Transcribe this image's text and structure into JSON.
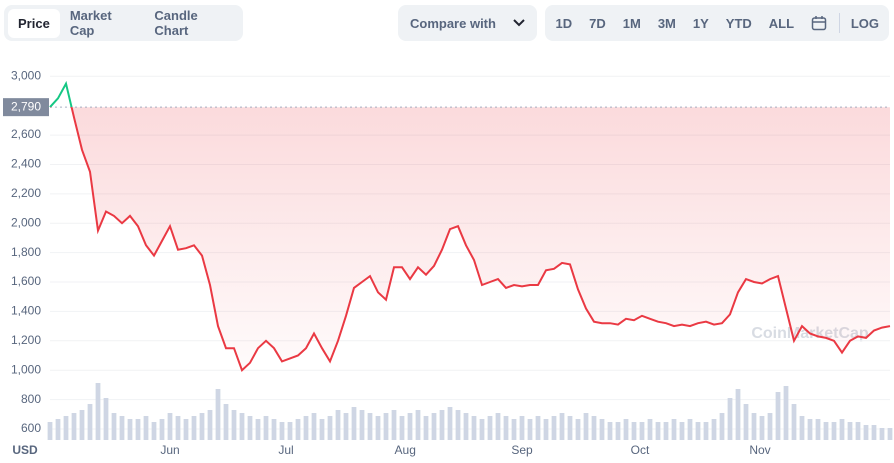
{
  "toolbar": {
    "tabs": [
      "Price",
      "Market Cap",
      "Candle Chart"
    ],
    "compare": "Compare with",
    "ranges": [
      "1D",
      "7D",
      "1M",
      "3M",
      "1Y",
      "YTD",
      "ALL"
    ],
    "log": "LOG"
  },
  "chart_data": {
    "type": "line",
    "currency": "USD",
    "watermark": "CoinMarketCap",
    "reference": {
      "value": 2790,
      "label": "2,790"
    },
    "up_color": "#16c784",
    "down_color": "#ea3943",
    "volume_color": "#cfd6e4",
    "grid": true,
    "xlim": [
      0,
      105
    ],
    "xticks": [
      {
        "value": 15,
        "label": "Jun"
      },
      {
        "value": 29.5,
        "label": "Jul"
      },
      {
        "value": 44.4,
        "label": "Aug"
      },
      {
        "value": 59,
        "label": "Sep"
      },
      {
        "value": 73.75,
        "label": "Oct"
      },
      {
        "value": 88.75,
        "label": "Nov"
      }
    ],
    "ylim": [
      525,
      3070
    ],
    "yticks": [
      {
        "value": 600,
        "label": "600"
      },
      {
        "value": 800,
        "label": "800"
      },
      {
        "value": 1000,
        "label": "1,000"
      },
      {
        "value": 1200,
        "label": "1,200"
      },
      {
        "value": 1400,
        "label": "1,400"
      },
      {
        "value": 1600,
        "label": "1,600"
      },
      {
        "value": 1800,
        "label": "1,800"
      },
      {
        "value": 2000,
        "label": "2,000"
      },
      {
        "value": 2200,
        "label": "2,200"
      },
      {
        "value": 2400,
        "label": "2,400"
      },
      {
        "value": 2600,
        "label": "2,600"
      },
      {
        "value": 3000,
        "label": "3,000"
      }
    ],
    "values": [
      2790,
      2850,
      2950,
      2720,
      2500,
      2350,
      1950,
      2080,
      2050,
      2000,
      2050,
      1980,
      1850,
      1780,
      1880,
      1980,
      1820,
      1830,
      1850,
      1780,
      1580,
      1300,
      1150,
      1150,
      1000,
      1050,
      1150,
      1200,
      1150,
      1060,
      1080,
      1100,
      1150,
      1250,
      1150,
      1060,
      1200,
      1370,
      1560,
      1600,
      1640,
      1530,
      1480,
      1700,
      1700,
      1620,
      1700,
      1650,
      1710,
      1820,
      1960,
      1980,
      1850,
      1750,
      1580,
      1600,
      1620,
      1560,
      1580,
      1570,
      1580,
      1580,
      1680,
      1690,
      1730,
      1720,
      1550,
      1420,
      1330,
      1320,
      1320,
      1310,
      1350,
      1340,
      1370,
      1350,
      1330,
      1320,
      1300,
      1310,
      1300,
      1320,
      1330,
      1310,
      1320,
      1380,
      1530,
      1620,
      1600,
      1590,
      1620,
      1640,
      1420,
      1200,
      1300,
      1250,
      1230,
      1220,
      1200,
      1120,
      1200,
      1230,
      1220,
      1270,
      1290,
      1300
    ],
    "vlim": [
      0,
      100
    ],
    "volume": [
      30,
      35,
      40,
      45,
      50,
      60,
      95,
      70,
      45,
      40,
      35,
      35,
      40,
      30,
      35,
      45,
      40,
      35,
      40,
      45,
      50,
      85,
      60,
      50,
      45,
      40,
      35,
      40,
      35,
      30,
      30,
      35,
      40,
      45,
      35,
      40,
      50,
      45,
      55,
      50,
      45,
      40,
      45,
      50,
      40,
      45,
      50,
      40,
      45,
      50,
      55,
      50,
      45,
      40,
      35,
      40,
      45,
      40,
      35,
      40,
      35,
      40,
      35,
      40,
      45,
      40,
      35,
      45,
      40,
      35,
      30,
      30,
      35,
      30,
      30,
      35,
      30,
      30,
      35,
      30,
      35,
      30,
      30,
      35,
      45,
      70,
      85,
      60,
      45,
      40,
      45,
      80,
      90,
      60,
      40,
      35,
      35,
      30,
      30,
      35,
      30,
      30,
      25,
      25,
      20,
      20
    ]
  }
}
